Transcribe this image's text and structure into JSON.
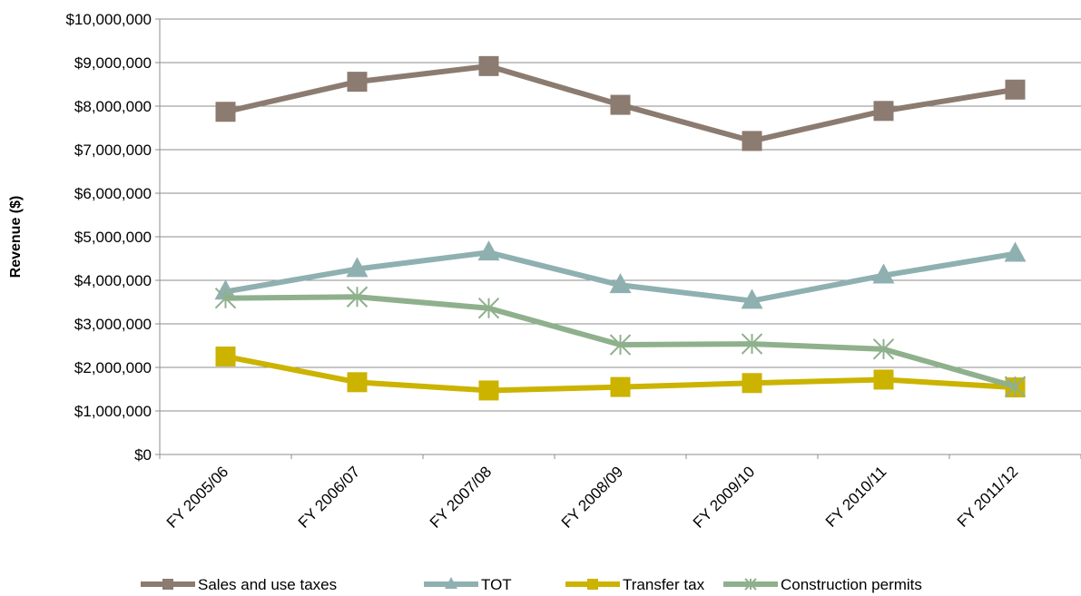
{
  "chart_data": {
    "type": "line",
    "title": "",
    "xlabel": "",
    "ylabel": "Revenue ($)",
    "ylim": [
      0,
      10000000
    ],
    "y_ticks": [
      0,
      1000000,
      2000000,
      3000000,
      4000000,
      5000000,
      6000000,
      7000000,
      8000000,
      9000000,
      10000000
    ],
    "y_tick_labels": [
      "$0",
      "$1,000,000",
      "$2,000,000",
      "$3,000,000",
      "$4,000,000",
      "$5,000,000",
      "$6,000,000",
      "$7,000,000",
      "$8,000,000",
      "$9,000,000",
      "$10,000,000"
    ],
    "grid": true,
    "legend_position": "bottom",
    "categories": [
      "FY 2005/06",
      "FY 2006/07",
      "FY 2007/08",
      "FY 2008/09",
      "FY 2009/10",
      "FY 2010/11",
      "FY 2011/12"
    ],
    "series": [
      {
        "name": "Sales and use taxes",
        "color": "#8c7b70",
        "marker": "square",
        "values": [
          7870000,
          8560000,
          8920000,
          8030000,
          7200000,
          7890000,
          8380000
        ]
      },
      {
        "name": "TOT",
        "color": "#8fb0b0",
        "marker": "triangle",
        "values": [
          3740000,
          4260000,
          4640000,
          3890000,
          3530000,
          4110000,
          4610000
        ]
      },
      {
        "name": "Transfer tax",
        "color": "#cbb300",
        "marker": "square",
        "values": [
          2250000,
          1660000,
          1470000,
          1550000,
          1640000,
          1720000,
          1540000
        ]
      },
      {
        "name": "Construction permits",
        "color": "#8fb08c",
        "marker": "star",
        "values": [
          3590000,
          3620000,
          3360000,
          2520000,
          2540000,
          2420000,
          1560000
        ]
      }
    ]
  }
}
